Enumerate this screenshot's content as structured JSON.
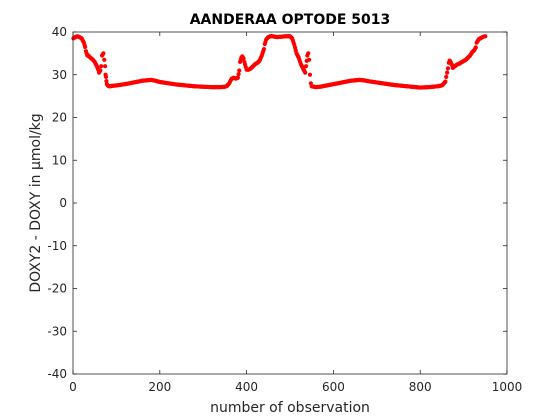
{
  "chart_data": {
    "type": "scatter",
    "title": "AANDERAA OPTODE 5013",
    "xlabel": "number of observation",
    "ylabel": "DOXY2 - DOXY in μmol/kg",
    "xlim": [
      0,
      1000
    ],
    "ylim": [
      -40,
      40
    ],
    "xticks": [
      0,
      200,
      400,
      600,
      800,
      1000
    ],
    "yticks": [
      -40,
      -30,
      -20,
      -10,
      0,
      10,
      20,
      30,
      40
    ],
    "grid": false,
    "marker_color": "#ff0000",
    "series": [
      {
        "x": [
          1,
          5,
          10,
          15,
          20,
          25,
          28,
          30,
          33,
          35,
          38,
          40,
          45,
          50,
          55,
          58,
          60,
          63,
          65,
          67,
          70,
          72,
          74,
          75,
          76,
          77,
          78,
          80,
          83,
          85,
          90,
          100,
          120,
          140,
          160,
          180,
          190,
          200,
          220,
          240,
          260,
          280,
          300,
          320,
          340,
          350,
          355,
          360,
          365,
          370,
          375,
          380,
          383,
          385,
          388,
          390,
          393,
          395,
          398,
          400,
          405,
          410,
          415,
          420,
          425,
          430,
          435,
          440,
          442,
          445,
          448,
          450,
          455,
          460,
          470,
          480,
          490,
          500,
          505,
          510,
          515,
          520,
          525,
          530,
          535,
          537,
          540,
          542,
          544,
          546,
          548,
          550,
          555,
          560,
          570,
          580,
          600,
          620,
          640,
          660,
          670,
          680,
          700,
          720,
          740,
          760,
          780,
          800,
          820,
          840,
          850,
          855,
          858,
          860,
          862,
          864,
          866,
          868,
          870,
          873,
          875,
          880,
          885,
          890,
          895,
          900,
          905,
          910,
          915,
          920,
          925,
          928,
          930,
          935,
          940,
          945,
          950
        ],
        "y": [
          38.5,
          38.8,
          39,
          38.8,
          38.5,
          37.5,
          36.5,
          35.5,
          34.5,
          34.5,
          34.2,
          34,
          33.6,
          33,
          32,
          31.2,
          30.5,
          31,
          32,
          34.5,
          35,
          33.5,
          32,
          30,
          29.5,
          28.5,
          27.8,
          27.5,
          27.3,
          27.3,
          27.4,
          27.5,
          27.8,
          28.2,
          28.6,
          28.8,
          28.6,
          28.3,
          28,
          27.7,
          27.5,
          27.3,
          27.2,
          27.1,
          27.1,
          27.2,
          27.4,
          28,
          29,
          29.3,
          29.1,
          29.3,
          31,
          33,
          34,
          34.3,
          33.8,
          33,
          31.8,
          31.2,
          31.2,
          31.5,
          32,
          32.5,
          32.8,
          33.3,
          34.5,
          36,
          37.2,
          38.2,
          38.6,
          38.8,
          39,
          39,
          38.8,
          38.9,
          39,
          39,
          38.5,
          37,
          35,
          34,
          32.5,
          31.5,
          30.5,
          32,
          34.5,
          35,
          33.5,
          30,
          28,
          27.3,
          27.2,
          27.1,
          27.2,
          27.4,
          27.8,
          28.2,
          28.6,
          28.8,
          28.7,
          28.5,
          28.2,
          27.9,
          27.6,
          27.4,
          27.2,
          27,
          27.1,
          27.3,
          27.5,
          28,
          28.4,
          29.5,
          30.5,
          31.5,
          32.8,
          33.3,
          33,
          32.3,
          31.6,
          32,
          32.4,
          32.6,
          32.9,
          33.2,
          33.5,
          34,
          34.5,
          35.3,
          35.8,
          36.4,
          37.5,
          38.3,
          38.6,
          38.9,
          39
        ]
      }
    ]
  }
}
